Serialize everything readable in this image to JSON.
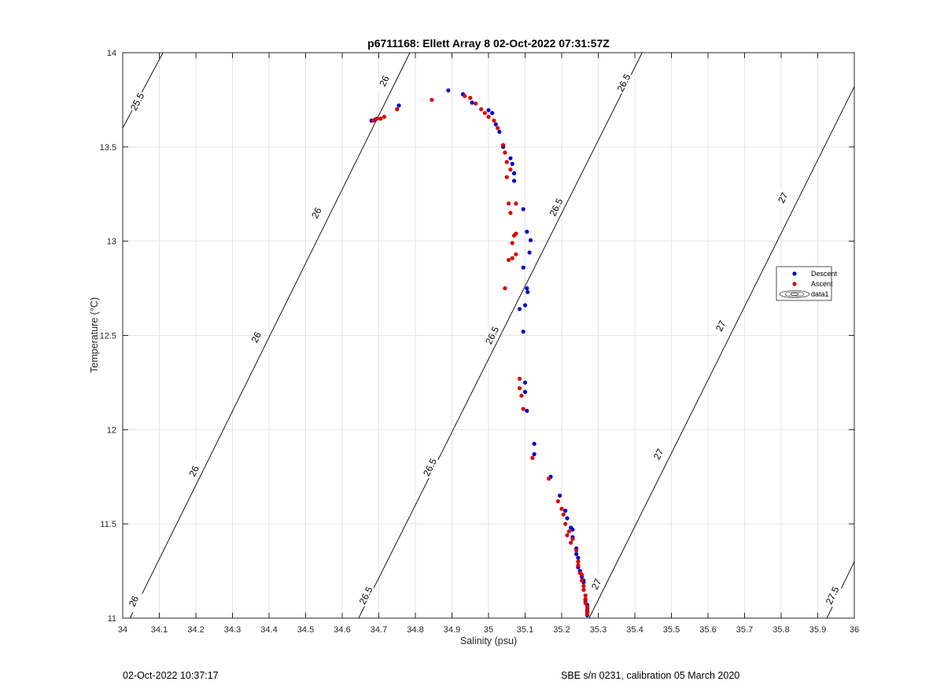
{
  "chart_data": {
    "type": "scatter",
    "title": "p6711168: Ellett Array 8 02-Oct-2022 07:31:57Z",
    "xlabel": "Salinity (psu)",
    "ylabel": "Temperature (°C)",
    "xlim": [
      34,
      36
    ],
    "ylim": [
      11,
      14
    ],
    "x_ticks": [
      "34",
      "34.1",
      "34.2",
      "34.3",
      "34.4",
      "34.5",
      "34.6",
      "34.7",
      "34.8",
      "34.9",
      "35",
      "35.1",
      "35.2",
      "35.3",
      "35.4",
      "35.5",
      "35.6",
      "35.7",
      "35.8",
      "35.9",
      "36"
    ],
    "y_ticks": [
      "11",
      "11.5",
      "12",
      "12.5",
      "13",
      "13.5",
      "14"
    ],
    "grid": true,
    "legend_position": "right",
    "legend": [
      "Descent",
      "Ascent",
      "data1"
    ],
    "colors": {
      "descent": "#0000cc",
      "ascent": "#dd0000",
      "contour": "#000000",
      "grid": "#e3e3e3"
    },
    "series": [
      {
        "name": "Descent",
        "points": [
          [
            34.68,
            13.64
          ],
          [
            34.69,
            13.645
          ],
          [
            34.755,
            13.72
          ],
          [
            34.89,
            13.8
          ],
          [
            34.93,
            13.78
          ],
          [
            34.955,
            13.735
          ],
          [
            35.0,
            13.695
          ],
          [
            35.01,
            13.68
          ],
          [
            35.02,
            13.62
          ],
          [
            35.03,
            13.58
          ],
          [
            35.04,
            13.5
          ],
          [
            35.06,
            13.44
          ],
          [
            35.065,
            13.41
          ],
          [
            35.07,
            13.36
          ],
          [
            35.07,
            13.32
          ],
          [
            35.095,
            13.17
          ],
          [
            35.105,
            13.05
          ],
          [
            35.115,
            13.005
          ],
          [
            35.112,
            12.94
          ],
          [
            35.095,
            12.86
          ],
          [
            35.105,
            12.75
          ],
          [
            35.107,
            12.73
          ],
          [
            35.1,
            12.66
          ],
          [
            35.085,
            12.64
          ],
          [
            35.095,
            12.52
          ],
          [
            35.1,
            12.25
          ],
          [
            35.1,
            12.2
          ],
          [
            35.105,
            12.1
          ],
          [
            35.125,
            11.925
          ],
          [
            35.125,
            11.87
          ],
          [
            35.17,
            11.75
          ],
          [
            35.195,
            11.65
          ],
          [
            35.21,
            11.57
          ],
          [
            35.215,
            11.53
          ],
          [
            35.225,
            11.48
          ],
          [
            35.23,
            11.47
          ],
          [
            35.23,
            11.43
          ],
          [
            35.24,
            11.37
          ],
          [
            35.24,
            11.34
          ],
          [
            35.245,
            11.32
          ],
          [
            35.245,
            11.27
          ],
          [
            35.25,
            11.25
          ],
          [
            35.255,
            11.22
          ],
          [
            35.26,
            11.2
          ],
          [
            35.26,
            11.19
          ],
          [
            35.26,
            11.15
          ],
          [
            35.265,
            11.1
          ],
          [
            35.265,
            11.09
          ],
          [
            35.27,
            11.07
          ],
          [
            35.27,
            11.04
          ],
          [
            35.27,
            11.03
          ],
          [
            35.27,
            11.02
          ],
          [
            35.27,
            11.015
          ]
        ]
      },
      {
        "name": "Ascent",
        "points": [
          [
            34.685,
            13.64
          ],
          [
            34.695,
            13.65
          ],
          [
            34.705,
            13.65
          ],
          [
            34.715,
            13.66
          ],
          [
            34.75,
            13.7
          ],
          [
            34.845,
            13.75
          ],
          [
            34.935,
            13.77
          ],
          [
            34.95,
            13.76
          ],
          [
            34.965,
            13.73
          ],
          [
            34.98,
            13.7
          ],
          [
            34.99,
            13.68
          ],
          [
            35.0,
            13.66
          ],
          [
            35.015,
            13.64
          ],
          [
            35.025,
            13.6
          ],
          [
            35.04,
            13.51
          ],
          [
            35.045,
            13.47
          ],
          [
            35.05,
            13.42
          ],
          [
            35.06,
            13.38
          ],
          [
            35.05,
            13.34
          ],
          [
            35.055,
            13.2
          ],
          [
            35.075,
            13.2
          ],
          [
            35.06,
            13.15
          ],
          [
            35.075,
            13.04
          ],
          [
            35.07,
            13.03
          ],
          [
            35.065,
            12.99
          ],
          [
            35.075,
            12.93
          ],
          [
            35.065,
            12.91
          ],
          [
            35.055,
            12.9
          ],
          [
            35.045,
            12.75
          ],
          [
            35.085,
            12.27
          ],
          [
            35.085,
            12.22
          ],
          [
            35.09,
            12.18
          ],
          [
            35.095,
            12.11
          ],
          [
            35.12,
            11.85
          ],
          [
            35.165,
            11.74
          ],
          [
            35.19,
            11.62
          ],
          [
            35.2,
            11.58
          ],
          [
            35.205,
            11.55
          ],
          [
            35.21,
            11.5
          ],
          [
            35.22,
            11.46
          ],
          [
            35.215,
            11.44
          ],
          [
            35.23,
            11.42
          ],
          [
            35.225,
            11.4
          ],
          [
            35.24,
            11.36
          ],
          [
            35.245,
            11.3
          ],
          [
            35.245,
            11.28
          ],
          [
            35.25,
            11.24
          ],
          [
            35.255,
            11.23
          ],
          [
            35.255,
            11.2
          ],
          [
            35.26,
            11.17
          ],
          [
            35.26,
            11.15
          ],
          [
            35.265,
            11.12
          ],
          [
            35.265,
            11.1
          ],
          [
            35.265,
            11.08
          ],
          [
            35.27,
            11.06
          ],
          [
            35.27,
            11.05
          ],
          [
            35.27,
            11.03
          ],
          [
            35.27,
            11.02
          ]
        ]
      }
    ],
    "contours": [
      {
        "level_label": "25.5",
        "points": [
          [
            34.0,
            13.6
          ],
          [
            34.11,
            14.0
          ]
        ],
        "labels_at": [
          [
            34.04,
            13.74
          ]
        ]
      },
      {
        "level_label": "26",
        "points": [
          [
            34.02,
            11.0
          ],
          [
            34.785,
            14.0
          ]
        ],
        "labels_at": [
          [
            34.03,
            11.09
          ],
          [
            34.195,
            11.78
          ],
          [
            34.365,
            12.49
          ],
          [
            34.53,
            13.15
          ],
          [
            34.715,
            13.85
          ]
        ]
      },
      {
        "level_label": "26.5",
        "points": [
          [
            34.645,
            11.0
          ],
          [
            35.42,
            14.0
          ]
        ],
        "labels_at": [
          [
            34.665,
            11.12
          ],
          [
            34.84,
            11.8
          ],
          [
            35.01,
            12.5
          ],
          [
            35.185,
            13.18
          ],
          [
            35.37,
            13.84
          ]
        ]
      },
      {
        "level_label": "27",
        "points": [
          [
            35.275,
            11.0
          ],
          [
            36.0,
            13.82
          ]
        ],
        "labels_at": [
          [
            35.295,
            11.18
          ],
          [
            35.465,
            11.87
          ],
          [
            35.635,
            12.55
          ],
          [
            35.805,
            13.23
          ]
        ]
      },
      {
        "level_label": "27.5",
        "points": [
          [
            35.925,
            11.0
          ],
          [
            36.0,
            11.3
          ]
        ],
        "labels_at": [
          [
            35.94,
            11.12
          ]
        ]
      }
    ]
  },
  "footer": {
    "left_text": "02-Oct-2022 10:37:17",
    "right_text": "SBE s/n 0231, calibration 05 March 2020"
  }
}
